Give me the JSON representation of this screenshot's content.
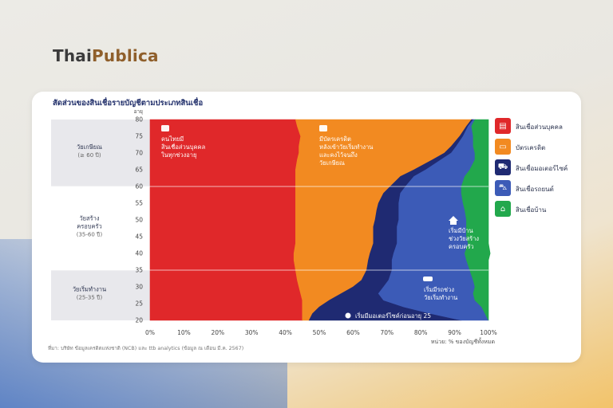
{
  "logo": {
    "part1": "Thai",
    "part2": "Publica"
  },
  "card": {
    "title": "สัดส่วนของสินเชื่อรายบัญชีตามประเภทสินเชื่อ",
    "footnote": "ที่มา: บริษัท ข้อมูลเครดิตแห่งชาติ (NCB) และ ttb analytics (ข้อมูล ณ เดือน มี.ค. 2567)"
  },
  "colors": {
    "personal": "#e0282a",
    "credit": "#f28a21",
    "moto": "#1f2a72",
    "car": "#3c5bb7",
    "home": "#22a84c"
  },
  "legend": [
    {
      "key": "personal",
      "label": "สินเชื่อส่วนบุคคล",
      "icon": "wallet-icon",
      "glyph": "▤"
    },
    {
      "key": "credit",
      "label": "บัตรเครดิต",
      "icon": "credit-card-icon",
      "glyph": "▭"
    },
    {
      "key": "moto",
      "label": "สินเชื่อมอเตอร์ไซค์",
      "icon": "motorcycle-icon",
      "glyph": "⛟"
    },
    {
      "key": "car",
      "label": "สินเชื่อรถยนต์",
      "icon": "car-icon",
      "glyph": "⛍"
    },
    {
      "key": "home",
      "label": "สินเชื่อบ้าน",
      "icon": "house-icon",
      "glyph": "⌂"
    }
  ],
  "bands": [
    {
      "name": "วัยเกษียณ",
      "range": "(≥ 60 ปี)",
      "from": 60,
      "to": 80,
      "shade": "#e8e8ec"
    },
    {
      "name": "วัยสร้าง",
      "name2": "ครอบครัว",
      "range": "(35-60 ปี)",
      "from": 35,
      "to": 60,
      "shade": "#ffffff"
    },
    {
      "name": "วัยเริ่มทำงาน",
      "range": "(25-35 ปี)",
      "from": 20,
      "to": 35,
      "shade": "#e8e8ec"
    }
  ],
  "annotations": {
    "personal": [
      "คนไทยมี",
      "สินเชื่อส่วนบุคคล",
      "ในทุกช่วงอายุ"
    ],
    "credit": [
      "มีบัตรเครดิต",
      "หลังเข้าวัยเริ่มทำงาน",
      "และคงไว้จนถึง",
      "วัยเกษียณ"
    ],
    "home": [
      "เริ่มมีบ้าน",
      "ช่วงวัยสร้าง",
      "ครอบครัว"
    ],
    "car": [
      "เริ่มมีรถช่วง",
      "วัยเริ่มทำงาน"
    ],
    "moto": "เริ่มมีมอเตอร์ไซค์ก่อนอายุ 25"
  },
  "chart_data": {
    "type": "area",
    "orientation": "horizontal-stacked-100",
    "ylabel": "อายุ",
    "xlabel": "หน่วย: % ของบัญชีทั้งหมด",
    "xlim": [
      0,
      100
    ],
    "ylim": [
      20,
      80
    ],
    "x_ticks": [
      "0%",
      "10%",
      "20%",
      "30%",
      "40%",
      "50%",
      "60%",
      "70%",
      "80%",
      "90%",
      "100%"
    ],
    "y_ticks": [
      20,
      25,
      30,
      35,
      40,
      45,
      50,
      55,
      60,
      65,
      70,
      75,
      80
    ],
    "reference_lines": [
      35,
      60
    ],
    "age": [
      20,
      22,
      24,
      26,
      28,
      30,
      32,
      35,
      38,
      40,
      43,
      45,
      48,
      50,
      53,
      55,
      58,
      60,
      63,
      65,
      68,
      70,
      72,
      75,
      78,
      80
    ],
    "series": [
      {
        "key": "personal",
        "name": "สินเชื่อส่วนบุคคล",
        "values": [
          45,
          45,
          45,
          45,
          44.5,
          44,
          43.5,
          43,
          42.5,
          42.5,
          43,
          43,
          43,
          43,
          43,
          43,
          43,
          43,
          43,
          43,
          43.5,
          44,
          44,
          44.5,
          43.5,
          43
        ]
      },
      {
        "key": "credit",
        "name": "บัตรเครดิต",
        "values": [
          2,
          3,
          5,
          8,
          12,
          16,
          19,
          21,
          22,
          22.5,
          23,
          23,
          23,
          23.5,
          24,
          24.5,
          26,
          28,
          31,
          35,
          40,
          43,
          45,
          47,
          50,
          52
        ]
      },
      {
        "key": "moto",
        "name": "สินเชื่อมอเตอร์ไซค์",
        "values": [
          45,
          35,
          25,
          16,
          11,
          9,
          8,
          7.5,
          7,
          7,
          7,
          7,
          7,
          7,
          6.5,
          6,
          5,
          4.5,
          4,
          3.5,
          2.5,
          2,
          1.5,
          1,
          0.5,
          0.5
        ]
      },
      {
        "key": "car",
        "name": "สินเชื่อรถยนต์",
        "values": [
          8,
          16,
          23,
          27,
          28,
          27,
          25,
          23,
          22,
          21,
          21,
          20.5,
          20.5,
          20,
          19.5,
          19,
          18,
          16.5,
          15,
          13,
          10,
          7,
          5,
          3,
          1,
          0.5
        ]
      },
      {
        "key": "home",
        "name": "สินเชื่อบ้าน",
        "values": [
          0,
          1,
          2,
          4,
          4.5,
          4,
          4.5,
          5.5,
          6.5,
          7.5,
          6,
          6.5,
          6.5,
          6.5,
          7,
          7.5,
          8,
          8,
          7,
          5.5,
          4,
          4,
          4.5,
          4.5,
          5,
          4
        ]
      }
    ]
  }
}
